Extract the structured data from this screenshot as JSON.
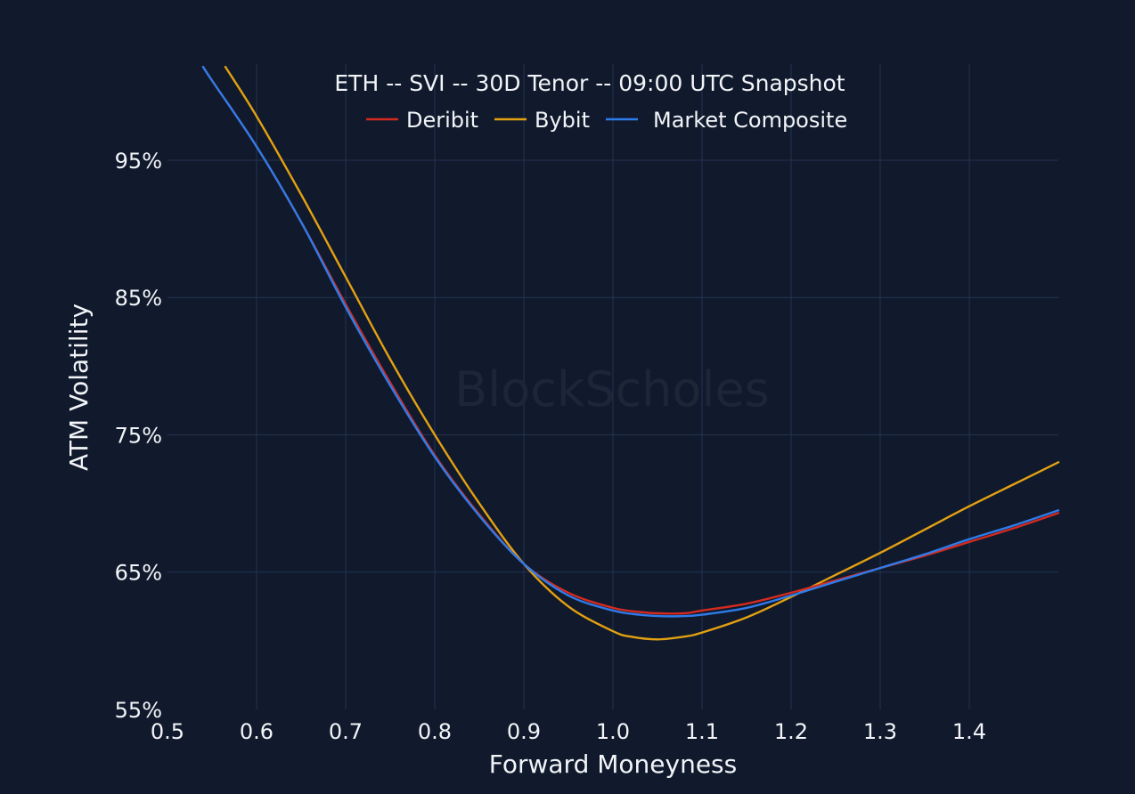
{
  "colors": {
    "background": "#101a2c",
    "grid": "#243352",
    "text": "#f2f4f8",
    "watermark": "#1d2637"
  },
  "watermark": "BlockScholes",
  "chart_data": {
    "type": "line",
    "title": "ETH -- SVI -- 30D Tenor -- 09:00 UTC Snapshot",
    "xlabel": "Forward Moneyness",
    "ylabel": "ATM Volatility",
    "xlim": [
      0.5,
      1.5
    ],
    "ylim": [
      55,
      102
    ],
    "x_ticks": [
      0.5,
      0.6,
      0.7,
      0.8,
      0.9,
      1.0,
      1.1,
      1.2,
      1.3,
      1.4
    ],
    "x_tick_labels": [
      "0.5",
      "0.6",
      "0.7",
      "0.8",
      "0.9",
      "1.0",
      "1.1",
      "1.2",
      "1.3",
      "1.4"
    ],
    "y_ticks": [
      55,
      65,
      75,
      85,
      95
    ],
    "y_tick_labels": [
      "55%",
      "65%",
      "75%",
      "85%",
      "95%"
    ],
    "grid": true,
    "legend_position": "top-center",
    "series": [
      {
        "name": "Deribit",
        "color": "#d42a1f",
        "x": [
          0.54,
          0.55,
          0.6,
          0.65,
          0.7,
          0.75,
          0.8,
          0.85,
          0.9,
          0.95,
          1.0,
          1.03,
          1.05,
          1.08,
          1.1,
          1.15,
          1.2,
          1.25,
          1.3,
          1.35,
          1.4,
          1.45,
          1.5
        ],
        "y": [
          101.8,
          100.8,
          96.0,
          90.5,
          84.5,
          78.8,
          73.5,
          69.2,
          65.6,
          63.5,
          62.4,
          62.1,
          62.0,
          62.0,
          62.2,
          62.7,
          63.5,
          64.4,
          65.3,
          66.2,
          67.2,
          68.2,
          69.3
        ]
      },
      {
        "name": "Bybit",
        "color": "#e3a012",
        "x": [
          0.565,
          0.6,
          0.65,
          0.7,
          0.75,
          0.8,
          0.85,
          0.9,
          0.95,
          1.0,
          1.02,
          1.05,
          1.08,
          1.1,
          1.15,
          1.2,
          1.25,
          1.3,
          1.35,
          1.4,
          1.45,
          1.5
        ],
        "y": [
          101.8,
          98.2,
          92.5,
          86.5,
          80.5,
          75.0,
          70.0,
          65.6,
          62.5,
          60.7,
          60.3,
          60.1,
          60.3,
          60.6,
          61.7,
          63.2,
          64.8,
          66.4,
          68.1,
          69.8,
          71.4,
          73.0
        ]
      },
      {
        "name": "Market Composite",
        "color": "#2f7bea",
        "x": [
          0.54,
          0.55,
          0.6,
          0.65,
          0.7,
          0.75,
          0.8,
          0.85,
          0.9,
          0.95,
          1.0,
          1.03,
          1.05,
          1.08,
          1.1,
          1.15,
          1.2,
          1.25,
          1.3,
          1.35,
          1.4,
          1.45,
          1.5
        ],
        "y": [
          101.8,
          100.8,
          96.0,
          90.5,
          84.3,
          78.6,
          73.4,
          69.1,
          65.6,
          63.3,
          62.2,
          61.9,
          61.8,
          61.8,
          61.9,
          62.4,
          63.3,
          64.3,
          65.3,
          66.3,
          67.4,
          68.4,
          69.5
        ]
      }
    ]
  }
}
